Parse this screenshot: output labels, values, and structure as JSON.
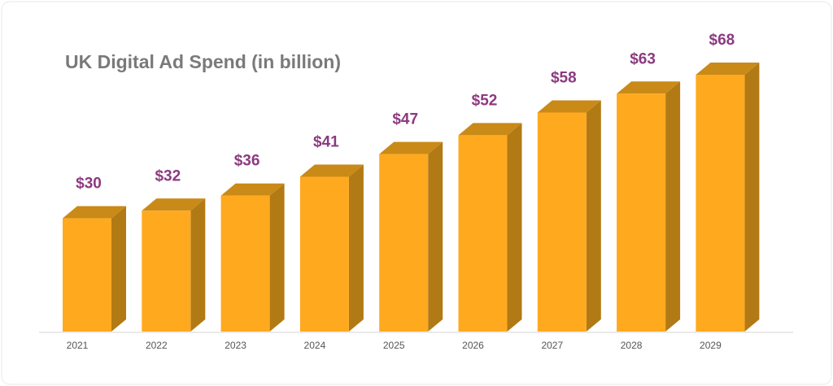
{
  "chart_data": {
    "type": "bar3d",
    "title": "UK Digital Ad Spend (in billion)",
    "categories": [
      "2021",
      "2022",
      "2023",
      "2024",
      "2025",
      "2026",
      "2027",
      "2028",
      "2029"
    ],
    "values": [
      30,
      32,
      36,
      41,
      47,
      52,
      58,
      63,
      68
    ],
    "value_labels": [
      "$30",
      "$32",
      "$36",
      "$41",
      "$47",
      "$52",
      "$58",
      "$63",
      "$68"
    ],
    "color": "#ffa91f"
  }
}
